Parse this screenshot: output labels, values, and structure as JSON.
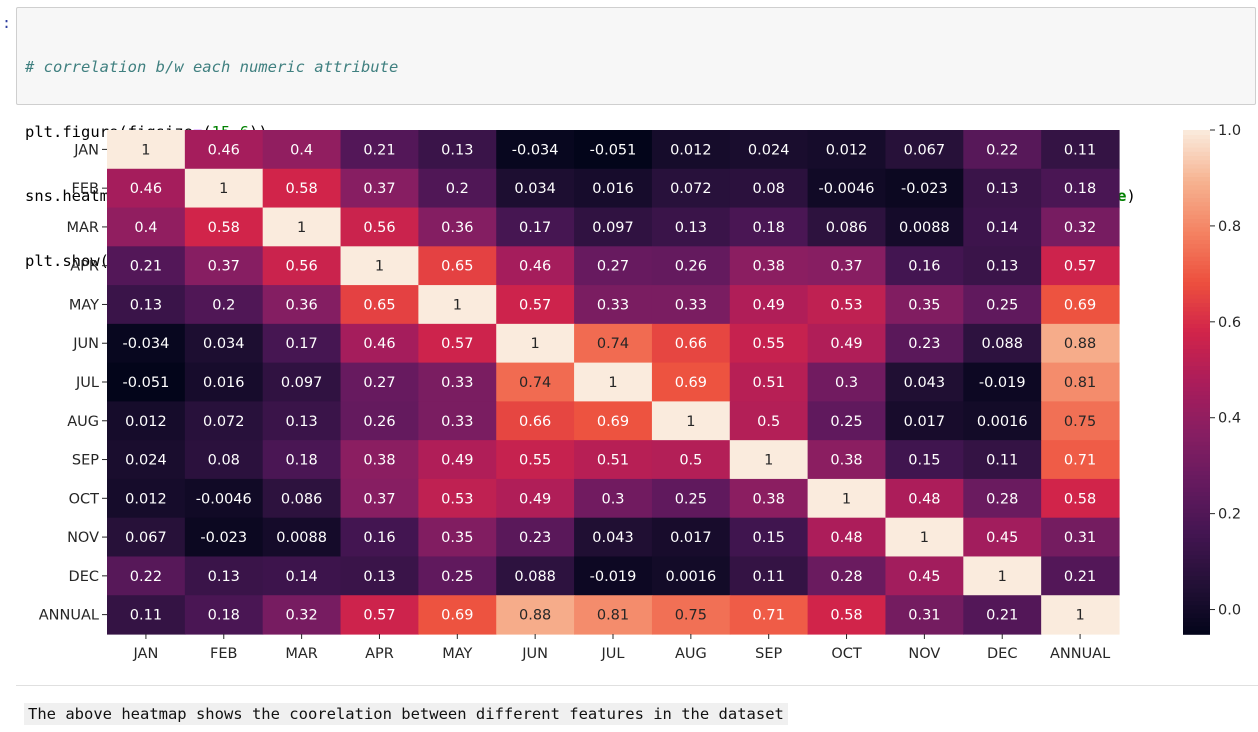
{
  "notebook": {
    "prompt": ":",
    "code_lines": [
      "# correlation b/w each numeric attribute",
      "plt.figure(figsize=(15,6))",
      "sns.heatmap(data[['JAN','FEB','MAR','APR','MAY','JUN','JUL','AUG','SEP','OCT','NOV','DEC','ANNUAL']].corr(),annot=True)",
      "plt.show()"
    ],
    "markdown_text": "The above heatmap shows the coorelation between different features in the dataset"
  },
  "chart_data": {
    "type": "heatmap",
    "title": "",
    "xlabel": "",
    "ylabel": "",
    "colormap": "rocket",
    "x_labels": [
      "JAN",
      "FEB",
      "MAR",
      "APR",
      "MAY",
      "JUN",
      "JUL",
      "AUG",
      "SEP",
      "OCT",
      "NOV",
      "DEC",
      "ANNUAL"
    ],
    "y_labels": [
      "JAN",
      "FEB",
      "MAR",
      "APR",
      "MAY",
      "JUN",
      "JUL",
      "AUG",
      "SEP",
      "OCT",
      "NOV",
      "DEC",
      "ANNUAL"
    ],
    "values": [
      [
        1,
        0.46,
        0.4,
        0.21,
        0.13,
        -0.034,
        -0.051,
        0.012,
        0.024,
        0.012,
        0.067,
        0.22,
        0.11
      ],
      [
        0.46,
        1,
        0.58,
        0.37,
        0.2,
        0.034,
        0.016,
        0.072,
        0.08,
        -0.0046,
        -0.023,
        0.13,
        0.18
      ],
      [
        0.4,
        0.58,
        1,
        0.56,
        0.36,
        0.17,
        0.097,
        0.13,
        0.18,
        0.086,
        0.0088,
        0.14,
        0.32
      ],
      [
        0.21,
        0.37,
        0.56,
        1,
        0.65,
        0.46,
        0.27,
        0.26,
        0.38,
        0.37,
        0.16,
        0.13,
        0.57
      ],
      [
        0.13,
        0.2,
        0.36,
        0.65,
        1,
        0.57,
        0.33,
        0.33,
        0.49,
        0.53,
        0.35,
        0.25,
        0.69
      ],
      [
        -0.034,
        0.034,
        0.17,
        0.46,
        0.57,
        1,
        0.74,
        0.66,
        0.55,
        0.49,
        0.23,
        0.088,
        0.88
      ],
      [
        -0.051,
        0.016,
        0.097,
        0.27,
        0.33,
        0.74,
        1,
        0.69,
        0.51,
        0.3,
        0.043,
        -0.019,
        0.81
      ],
      [
        0.012,
        0.072,
        0.13,
        0.26,
        0.33,
        0.66,
        0.69,
        1,
        0.5,
        0.25,
        0.017,
        0.0016,
        0.75
      ],
      [
        0.024,
        0.08,
        0.18,
        0.38,
        0.49,
        0.55,
        0.51,
        0.5,
        1,
        0.38,
        0.15,
        0.11,
        0.71
      ],
      [
        0.012,
        -0.0046,
        0.086,
        0.37,
        0.53,
        0.49,
        0.3,
        0.25,
        0.38,
        1,
        0.48,
        0.28,
        0.58
      ],
      [
        0.067,
        -0.023,
        0.0088,
        0.16,
        0.35,
        0.23,
        0.043,
        0.017,
        0.15,
        0.48,
        1,
        0.45,
        0.31
      ],
      [
        0.22,
        0.13,
        0.14,
        0.13,
        0.25,
        0.088,
        -0.019,
        0.0016,
        0.11,
        0.28,
        0.45,
        1,
        0.21
      ],
      [
        0.11,
        0.18,
        0.32,
        0.57,
        0.69,
        0.88,
        0.81,
        0.75,
        0.71,
        0.58,
        0.31,
        0.21,
        1
      ]
    ],
    "colorbar": {
      "vmin": -0.051,
      "vmax": 1.0,
      "tick_values": [
        0.0,
        0.2,
        0.4,
        0.6,
        0.8,
        1.0
      ],
      "tick_labels": [
        "0.0",
        "0.2",
        "0.4",
        "0.6",
        "0.8",
        "1.0"
      ]
    }
  }
}
